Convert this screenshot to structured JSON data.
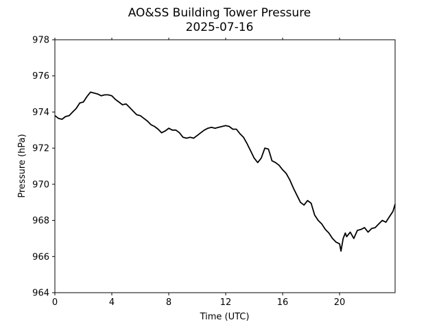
{
  "chart_data": {
    "type": "line",
    "title": "AO&SS Building Tower Pressure",
    "subtitle": "2025-07-16",
    "xlabel": "Time (UTC)",
    "ylabel": "Pressure (hPa)",
    "xlim": [
      0,
      23.9
    ],
    "ylim": [
      964,
      978
    ],
    "xticks": [
      0,
      4,
      8,
      12,
      16,
      20
    ],
    "yticks": [
      964,
      966,
      968,
      970,
      972,
      974,
      976,
      978
    ],
    "grid": false,
    "legend": "none",
    "line_color": "#000000",
    "series": [
      {
        "x": [
          0.0,
          0.25,
          0.5,
          0.75,
          1.0,
          1.25,
          1.5,
          1.75,
          2.0,
          2.25,
          2.5,
          2.75,
          3.0,
          3.25,
          3.5,
          3.75,
          4.0,
          4.25,
          4.5,
          4.75,
          5.0,
          5.25,
          5.5,
          5.75,
          6.0,
          6.25,
          6.5,
          6.75,
          7.0,
          7.25,
          7.5,
          7.75,
          8.0,
          8.25,
          8.5,
          8.75,
          9.0,
          9.25,
          9.5,
          9.75,
          10.0,
          10.25,
          10.5,
          10.75,
          11.0,
          11.25,
          11.5,
          11.75,
          12.0,
          12.25,
          12.5,
          12.75,
          13.0,
          13.25,
          13.5,
          13.75,
          14.0,
          14.25,
          14.5,
          14.75,
          15.0,
          15.1,
          15.25,
          15.5,
          15.75,
          16.0,
          16.25,
          16.5,
          16.75,
          17.0,
          17.25,
          17.5,
          17.75,
          18.0,
          18.25,
          18.5,
          18.75,
          19.0,
          19.25,
          19.5,
          19.75,
          20.0,
          20.1,
          20.25,
          20.4,
          20.5,
          20.75,
          21.0,
          21.25,
          21.5,
          21.75,
          22.0,
          22.25,
          22.5,
          22.75,
          23.0,
          23.25,
          23.5,
          23.75,
          23.9
        ],
        "y": [
          973.8,
          973.65,
          973.6,
          973.75,
          973.8,
          974.0,
          974.2,
          974.5,
          974.55,
          974.85,
          975.1,
          975.05,
          975.0,
          974.9,
          974.95,
          974.95,
          974.9,
          974.7,
          974.55,
          974.4,
          974.45,
          974.25,
          974.05,
          973.85,
          973.8,
          973.65,
          973.5,
          973.3,
          973.2,
          973.05,
          972.85,
          972.95,
          973.1,
          973.0,
          973.0,
          972.85,
          972.6,
          972.55,
          972.6,
          972.55,
          972.7,
          972.85,
          973.0,
          973.1,
          973.15,
          973.1,
          973.15,
          973.2,
          973.25,
          973.2,
          973.05,
          973.05,
          972.8,
          972.6,
          972.25,
          971.85,
          971.45,
          971.2,
          971.45,
          972.0,
          971.95,
          971.7,
          971.3,
          971.2,
          971.05,
          970.8,
          970.6,
          970.25,
          969.8,
          969.4,
          969.0,
          968.85,
          969.1,
          968.95,
          968.3,
          968.0,
          967.8,
          967.5,
          967.3,
          967.0,
          966.8,
          966.7,
          966.3,
          967.0,
          967.3,
          967.1,
          967.35,
          967.0,
          967.45,
          967.5,
          967.6,
          967.35,
          967.55,
          967.6,
          967.8,
          968.0,
          967.9,
          968.2,
          968.5,
          968.9
        ]
      }
    ]
  }
}
